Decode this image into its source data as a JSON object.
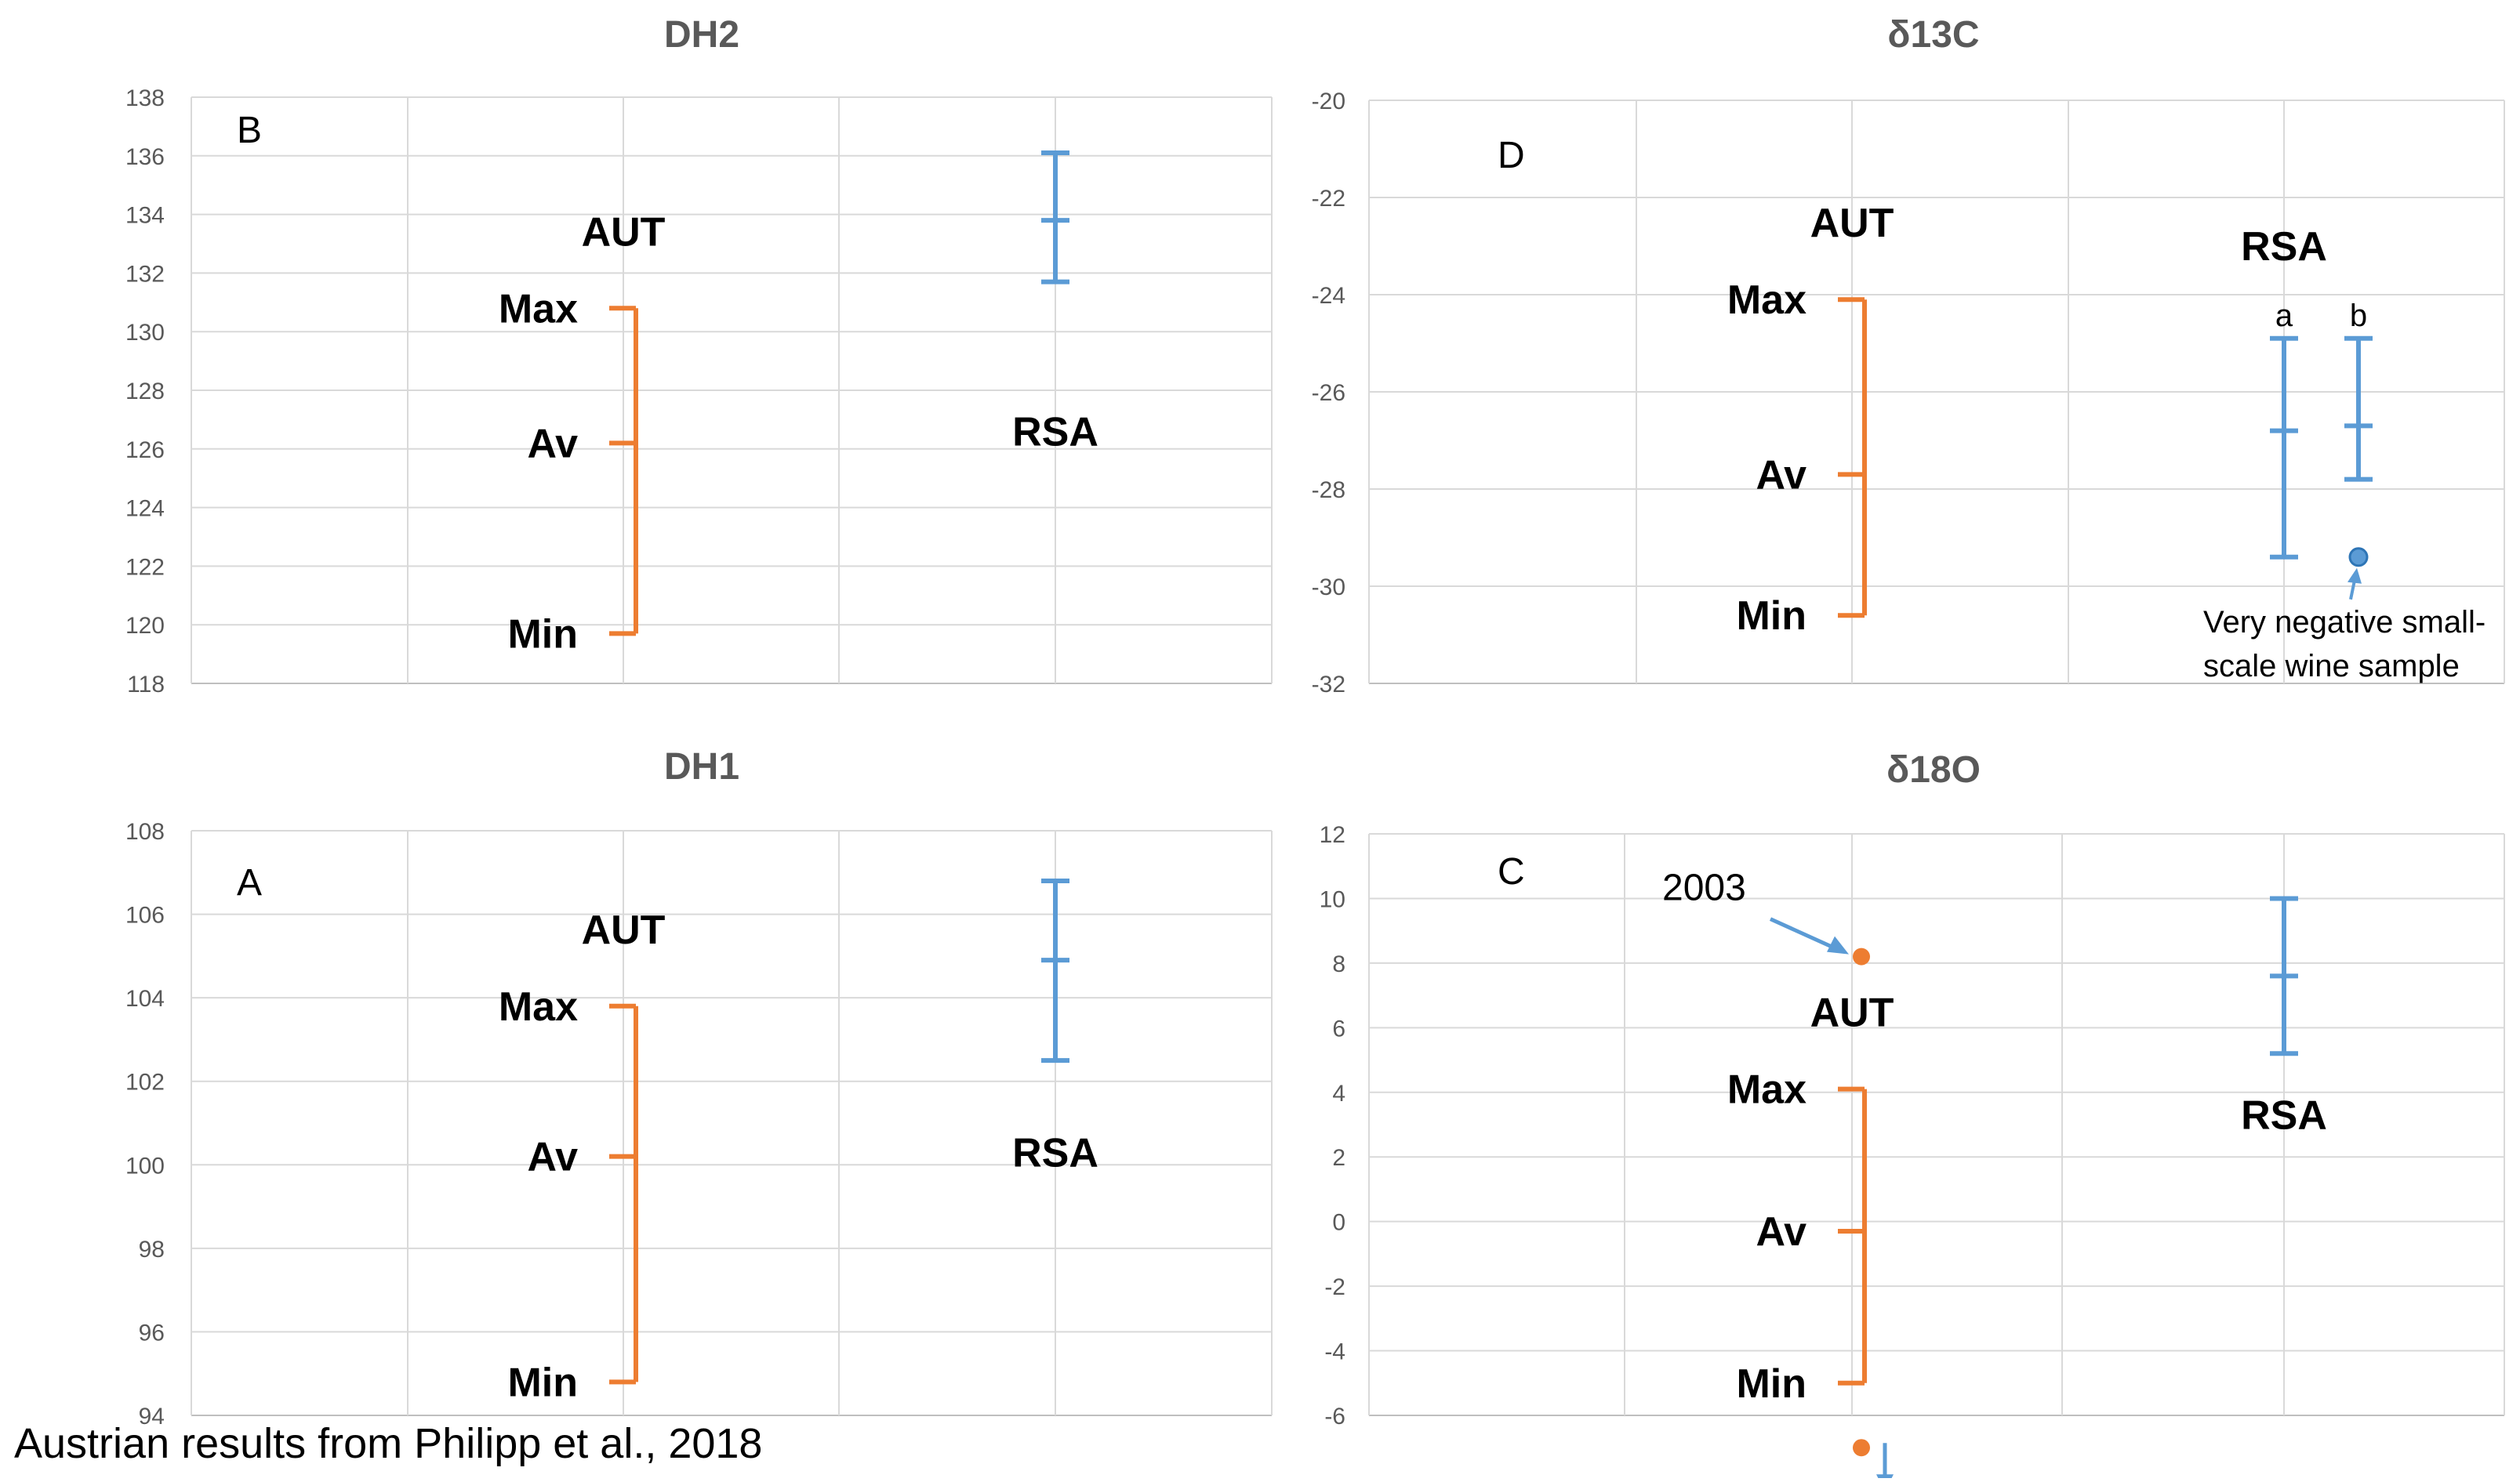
{
  "footer_note": "Austrian results from Philipp et al., 2018",
  "colors": {
    "aut": "#ED7D31",
    "rsa": "#5B9BD5",
    "grid": "#D9D9D9",
    "axis_text": "#595959"
  },
  "chart_data": [
    {
      "id": "dh2",
      "type": "range",
      "title": "DH2",
      "panel_letter": "B",
      "ylim": [
        118,
        138
      ],
      "yticks": [
        "138",
        "136",
        "134",
        "132",
        "130",
        "128",
        "126",
        "124",
        "122",
        "120",
        "118"
      ],
      "series": [
        {
          "name": "AUT",
          "min": 119.7,
          "avg": 126.2,
          "max": 130.8,
          "tick_labels": {
            "max": "Max",
            "avg": "Av",
            "min": "Min"
          }
        },
        {
          "name": "RSA",
          "min": 131.7,
          "avg": 133.8,
          "max": 136.1
        }
      ]
    },
    {
      "id": "d13c",
      "type": "range",
      "title": "δ13C",
      "panel_letter": "D",
      "ylim": [
        -32,
        -20
      ],
      "yticks": [
        "-20",
        "-22",
        "-24",
        "-26",
        "-28",
        "-30",
        "-32"
      ],
      "series": [
        {
          "name": "AUT",
          "min": -30.6,
          "avg": -27.7,
          "max": -24.1,
          "tick_labels": {
            "max": "Max",
            "avg": "Av",
            "min": "Min"
          }
        },
        {
          "name": "RSA",
          "subseries": [
            {
              "name": "a",
              "min": -29.4,
              "avg": -26.8,
              "max": -24.9
            },
            {
              "name": "b",
              "min": -27.8,
              "avg": -26.7,
              "max": -24.9
            }
          ]
        }
      ],
      "annotations": [
        {
          "label": "Very negative small-scale wine sample",
          "lines": [
            "Very negative small-",
            "scale wine sample"
          ],
          "value": -29.4
        }
      ]
    },
    {
      "id": "dh1",
      "type": "range",
      "title": "DH1",
      "panel_letter": "A",
      "ylim": [
        94,
        108
      ],
      "yticks": [
        "108",
        "106",
        "104",
        "102",
        "100",
        "98",
        "96",
        "94"
      ],
      "series": [
        {
          "name": "AUT",
          "min": 94.8,
          "avg": 100.2,
          "max": 103.8,
          "tick_labels": {
            "max": "Max",
            "avg": "Av",
            "min": "Min"
          }
        },
        {
          "name": "RSA",
          "min": 102.5,
          "avg": 104.9,
          "max": 106.8
        }
      ]
    },
    {
      "id": "d18o",
      "type": "range",
      "title": "δ18O",
      "panel_letter": "C",
      "ylim": [
        -6,
        12
      ],
      "yticks": [
        "12",
        "10",
        "8",
        "6",
        "4",
        "2",
        "0",
        "-2",
        "-4",
        "-6"
      ],
      "series": [
        {
          "name": "AUT",
          "min": -5.0,
          "avg": -0.3,
          "max": 4.1,
          "tick_labels": {
            "max": "Max",
            "avg": "Av",
            "min": "Min"
          }
        },
        {
          "name": "RSA",
          "min": 5.2,
          "avg": 7.6,
          "max": 10.0
        }
      ],
      "points": [
        {
          "series": "AUT",
          "value": 8.2,
          "label": "2003"
        },
        {
          "series": "AUT",
          "value": -7.0
        }
      ]
    }
  ]
}
